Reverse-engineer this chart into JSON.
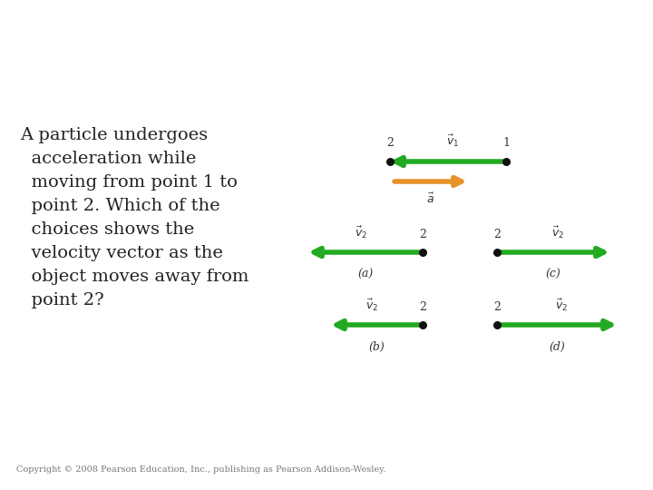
{
  "bg_color": "#ffffff",
  "question_lines": [
    "A particle undergoes",
    "  acceleration while",
    "  moving from point 1 to",
    "  point 2. Which of the",
    "  choices shows the",
    "  velocity vector as the",
    "  object moves away from",
    "  point 2?"
  ],
  "copyright_text": "Copyright © 2008 Pearson Education, Inc., publishing as Pearson Addison-Wesley.",
  "green_color": "#22aa22",
  "orange_color": "#e8922a",
  "dot_color": "#111111",
  "text_color": "#333333"
}
